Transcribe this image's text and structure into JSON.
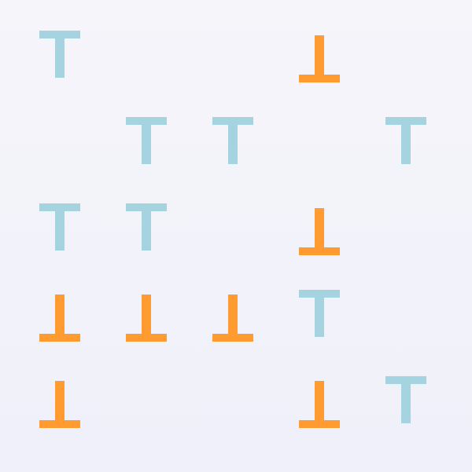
{
  "colors": {
    "up": "#a6d3e0",
    "down": "#ff9b30",
    "background_top": "#f5f5fa",
    "background_bottom": "#f0f0fa"
  },
  "board": {
    "rows": 5,
    "cols": 5,
    "cells": [
      [
        "up",
        "",
        "",
        "down",
        ""
      ],
      [
        "",
        "up",
        "up",
        "",
        "up"
      ],
      [
        "up",
        "up",
        "",
        "down",
        ""
      ],
      [
        "down",
        "down",
        "down",
        "up",
        ""
      ],
      [
        "down",
        "",
        "",
        "down",
        "up"
      ]
    ]
  }
}
